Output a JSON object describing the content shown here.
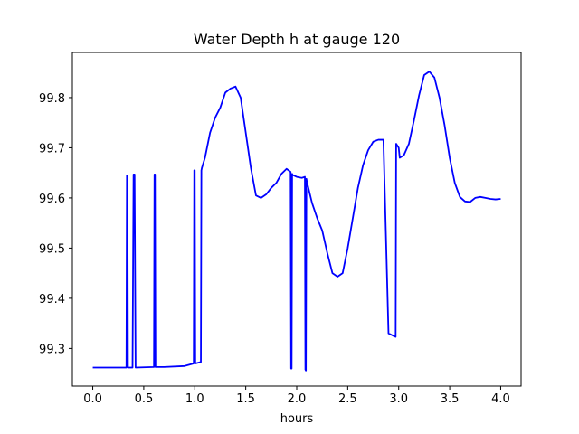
{
  "chart_data": {
    "type": "line",
    "title": "Water Depth h at gauge 120",
    "xlabel": "hours",
    "ylabel": "",
    "xlim": [
      -0.2,
      4.2
    ],
    "ylim": [
      99.225,
      99.89
    ],
    "xticks": [
      0.0,
      0.5,
      1.0,
      1.5,
      2.0,
      2.5,
      3.0,
      3.5,
      4.0
    ],
    "xtick_labels": [
      "0.0",
      "0.5",
      "1.0",
      "1.5",
      "2.0",
      "2.5",
      "3.0",
      "3.5",
      "4.0"
    ],
    "yticks": [
      99.3,
      99.4,
      99.5,
      99.6,
      99.7,
      99.8
    ],
    "ytick_labels": [
      "99.3",
      "99.4",
      "99.5",
      "99.6",
      "99.7",
      "99.8"
    ],
    "grid": false,
    "color": "#0000ff",
    "series": [
      {
        "name": "",
        "x": [
          0.0,
          0.33,
          0.335,
          0.34,
          0.345,
          0.39,
          0.4,
          0.41,
          0.42,
          0.6,
          0.605,
          0.61,
          0.615,
          0.7,
          0.9,
          0.99,
          0.995,
          1.0,
          1.005,
          1.06,
          1.065,
          1.07,
          1.1,
          1.15,
          1.2,
          1.25,
          1.3,
          1.35,
          1.4,
          1.45,
          1.5,
          1.55,
          1.6,
          1.65,
          1.7,
          1.75,
          1.8,
          1.85,
          1.9,
          1.94,
          1.945,
          1.95,
          1.955,
          1.96,
          2.0,
          2.05,
          2.08,
          2.085,
          2.09,
          2.095,
          2.1,
          2.15,
          2.2,
          2.25,
          2.3,
          2.35,
          2.4,
          2.45,
          2.5,
          2.55,
          2.6,
          2.65,
          2.7,
          2.75,
          2.8,
          2.85,
          2.9,
          2.95,
          2.97,
          2.975,
          3.0,
          3.005,
          3.01,
          3.05,
          3.1,
          3.15,
          3.2,
          3.25,
          3.3,
          3.35,
          3.4,
          3.45,
          3.5,
          3.55,
          3.6,
          3.65,
          3.7,
          3.75,
          3.8,
          3.85,
          3.9,
          3.95,
          4.0
        ],
        "y": [
          99.262,
          99.262,
          99.645,
          99.645,
          99.262,
          99.262,
          99.647,
          99.647,
          99.262,
          99.263,
          99.647,
          99.647,
          99.263,
          99.263,
          99.265,
          99.27,
          99.655,
          99.655,
          99.27,
          99.273,
          99.655,
          99.66,
          99.68,
          99.73,
          99.76,
          99.78,
          99.81,
          99.818,
          99.822,
          99.8,
          99.73,
          99.66,
          99.605,
          99.6,
          99.607,
          99.62,
          99.63,
          99.648,
          99.658,
          99.652,
          99.26,
          99.26,
          99.648,
          99.646,
          99.642,
          99.64,
          99.642,
          99.258,
          99.256,
          99.638,
          99.632,
          99.59,
          99.56,
          99.535,
          99.49,
          99.45,
          99.443,
          99.45,
          99.5,
          99.56,
          99.62,
          99.665,
          99.695,
          99.712,
          99.716,
          99.716,
          99.33,
          99.325,
          99.323,
          99.708,
          99.7,
          99.69,
          99.68,
          99.685,
          99.708,
          99.755,
          99.805,
          99.845,
          99.852,
          99.84,
          99.8,
          99.745,
          99.68,
          99.63,
          99.602,
          99.593,
          99.592,
          99.6,
          99.602,
          99.6,
          99.598,
          99.597,
          99.598
        ]
      }
    ]
  }
}
